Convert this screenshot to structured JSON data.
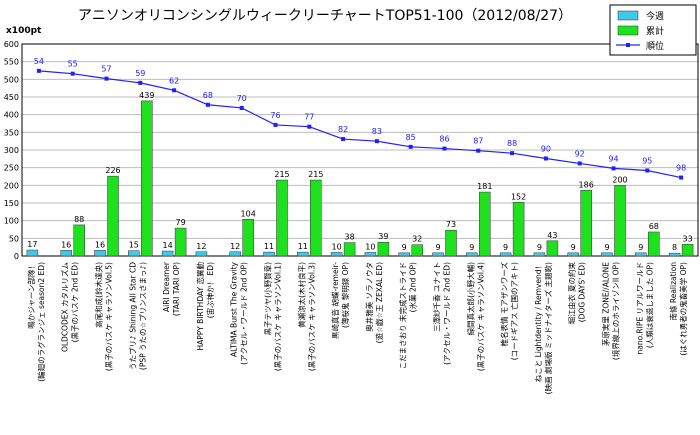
{
  "chart_data": {
    "type": "bar",
    "title": "アニソンオリコンシングルウィークリーチャートTOP51-100（2012/08/27）",
    "y_unit_label": "x100pt",
    "ylim": [
      0,
      600
    ],
    "yticks": [
      0,
      50,
      100,
      150,
      200,
      250,
      300,
      350,
      400,
      450,
      500,
      550,
      600
    ],
    "grid": true,
    "legend_position": "top-right",
    "categories": [
      [
        "鳴かジャーン部隊！",
        "(輪廻のラグランジェ season2 ED)"
      ],
      [
        "OLDCODEX カタルリズム",
        "(黒子のバスケ 2nd ED)"
      ],
      [
        "高尾和成(鈴木達央)",
        "(黒子のバスケ キャラソンVol.5)"
      ],
      [
        "うたプリ♪ Shining All Star CD",
        "(PSP うたの☆プリンスさまっ♪)"
      ],
      [
        "AiRI Dreamer",
        "(TARI TARI OP)"
      ],
      [
        "HAPPY BIRTHDAY 恋翼動",
        "(宙ぶ神か！ ED)"
      ],
      [
        "ALTIMA Burst The Gravity",
        "(アクセル・ワールド 2nd OP)"
      ],
      [
        "黒子テツヤ(小野賢章)",
        "(黒子のバスケ キャラソンVol.1)"
      ],
      [
        "黄瀬涼太(木村良平)",
        "(黒子のバスケ キャラソンVol.3)"
      ],
      [
        "黒崎真音 胡蝶-remeir-",
        "(薄桜鬼 黎明録 OP)"
      ],
      [
        "奥井雅美 ソラノウタ",
        "(遊☆戯☆王 ZEXAL ED)"
      ],
      [
        "こだまさおり 未完成ストライド",
        "(氷菓 2nd OP)"
      ],
      [
        "三澤紗千香 ユナイト",
        "(アクセル・ワールド 2nd ED)"
      ],
      [
        "緑間真太郎(小野大輔)",
        "(黒子のバスケ キャラソンVol.4)"
      ],
      [
        "椎名表情 モアザンワーズ",
        "(コードギアス 亡国のアキト)"
      ],
      [
        "ねこと Lightdentity / Remvend！",
        "(映画 劇場版 ミッドナイターズ 主題歌)"
      ],
      [
        "堀江由衣 夏の約束",
        "(DOG DAYS' ED)"
      ],
      [
        "茅原実里 ZONE//ALONE",
        "(境界線上のホライゾンII OP)"
      ],
      [
        "nano.RIPE リアルワールド",
        "(人類は衰退しました OP)"
      ],
      [
        "南條 Realization",
        "(はぐれ勇者の鬼畜美学 OP)"
      ]
    ],
    "series": [
      {
        "name": "今週",
        "color": "#3fc8e8",
        "values": [
          17,
          16,
          16,
          15,
          14,
          12,
          12,
          11,
          11,
          10,
          10,
          9,
          9,
          9,
          9,
          9,
          9,
          9,
          9,
          8
        ]
      },
      {
        "name": "累計",
        "color": "#1ee01e",
        "values": [
          null,
          88,
          226,
          439,
          79,
          null,
          104,
          215,
          215,
          38,
          39,
          32,
          73,
          181,
          152,
          43,
          186,
          200,
          68,
          33
        ]
      },
      {
        "name": "順位",
        "color": "#2020ff",
        "kind": "line",
        "values": [
          524,
          516,
          502,
          490,
          469,
          428,
          419,
          371,
          366,
          331,
          325,
          309,
          304,
          298,
          291,
          276,
          262,
          248,
          242,
          222
        ],
        "labels": [
          54,
          55,
          57,
          59,
          62,
          68,
          70,
          76,
          77,
          82,
          83,
          85,
          86,
          87,
          88,
          90,
          92,
          94,
          95,
          98
        ]
      }
    ]
  }
}
